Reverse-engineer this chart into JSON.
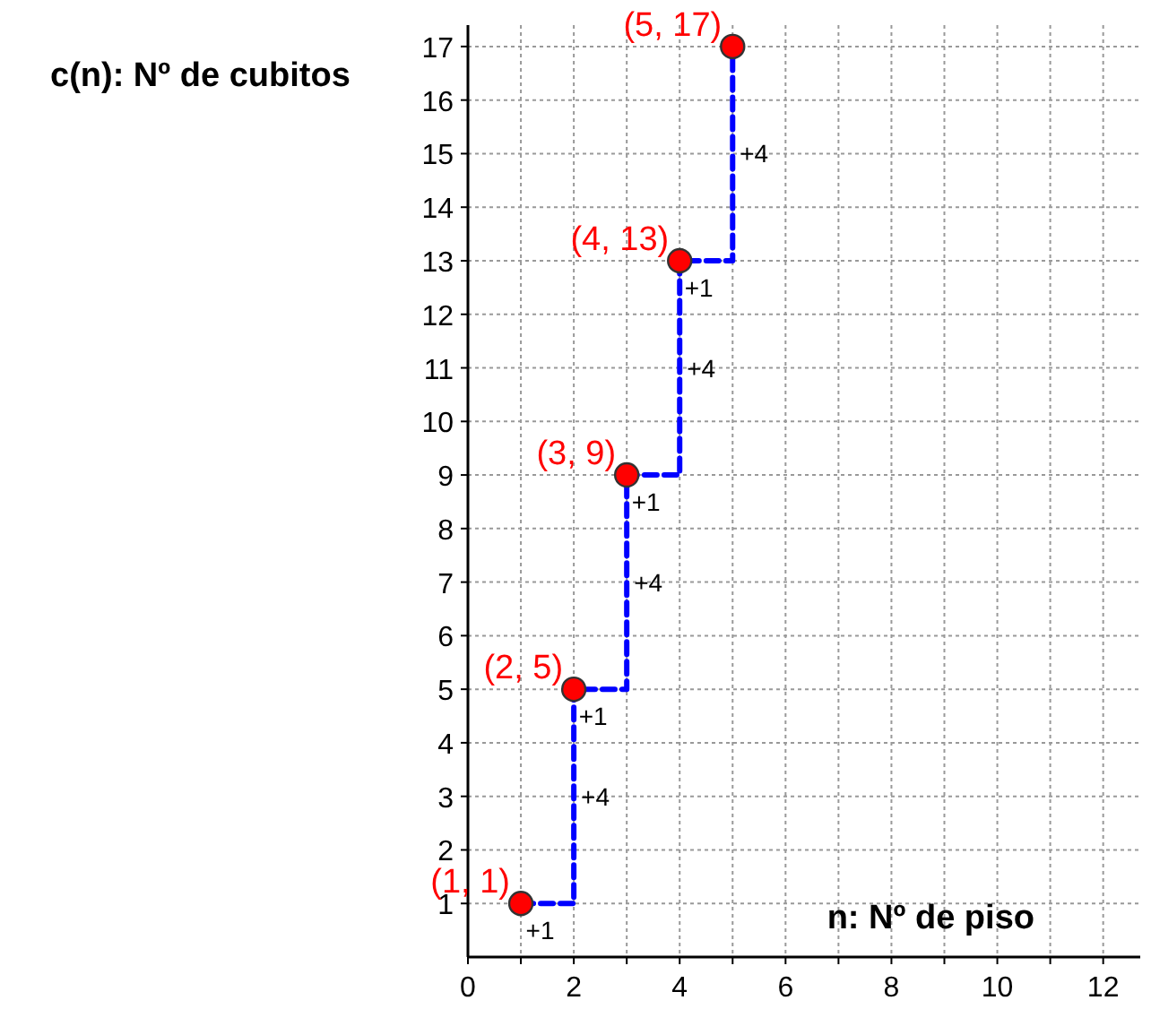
{
  "chart_data": {
    "type": "scatter",
    "xlabel": "n: Nº de piso",
    "ylabel": "c(n): Nº de cubitos",
    "x": [
      1,
      2,
      3,
      4,
      5
    ],
    "xlim": [
      0,
      12.7
    ],
    "ylim": [
      0,
      17.4
    ],
    "xticks": [
      0,
      {
        "value": 1,
        "label": null
      },
      2,
      {
        "value": 3,
        "label": null
      },
      4,
      {
        "value": 5,
        "label": null
      },
      6,
      {
        "value": 7,
        "label": null
      },
      8,
      {
        "value": 9,
        "label": null
      },
      10,
      {
        "value": 11,
        "label": null
      },
      12
    ],
    "yticks": [
      1,
      2,
      3,
      4,
      5,
      6,
      7,
      8,
      9,
      10,
      11,
      12,
      13,
      14,
      15,
      16,
      17
    ],
    "grid": true,
    "series": [
      {
        "type": "step",
        "color": "#0000ff",
        "line_style": "dashed",
        "marker": "none",
        "values": [
          1,
          5,
          9,
          13,
          17
        ]
      },
      {
        "type": "scatter",
        "color": "#ff0000",
        "marker": "circle",
        "values": [
          1,
          5,
          9,
          13,
          17
        ]
      }
    ],
    "annotations": [
      {
        "text": "(1, 1)",
        "x": 1,
        "y": 1
      },
      {
        "text": "(2, 5)",
        "x": 2,
        "y": 5
      },
      {
        "text": "(3, 9)",
        "x": 3,
        "y": 9
      },
      {
        "text": "(4, 13)",
        "x": 4,
        "y": 13
      },
      {
        "text": "(5, 17)",
        "x": 5,
        "y": 17
      },
      {
        "text": "+1",
        "x": 1.5,
        "y": 1
      },
      {
        "text": "+1",
        "x": 2.5,
        "y": 5
      },
      {
        "text": "+1",
        "x": 3.5,
        "y": 9
      },
      {
        "text": "+1",
        "x": 4.5,
        "y": 13
      },
      {
        "text": "+4",
        "x": 2,
        "y": 3
      },
      {
        "text": "+4",
        "x": 3,
        "y": 7
      },
      {
        "text": "+4",
        "x": 4,
        "y": 11
      },
      {
        "text": "+4",
        "x": 5,
        "y": 15
      }
    ]
  }
}
